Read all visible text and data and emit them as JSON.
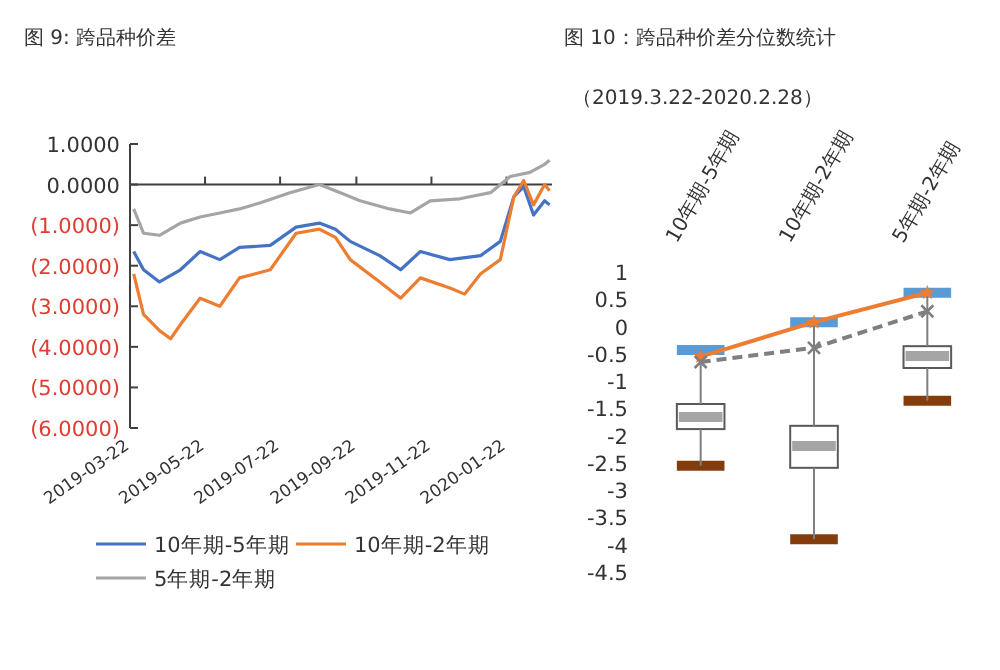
{
  "chart_data": [
    {
      "type": "line",
      "title": "图 9:  跨品种价差",
      "xlim": [
        "2019-03-22",
        "2020-02-28"
      ],
      "xticks": [
        "2019-03-22",
        "2019-05-22",
        "2019-07-22",
        "2019-09-22",
        "2019-11-22",
        "2020-01-22"
      ],
      "ylim": [
        -6,
        1
      ],
      "yticks": [
        {
          "value": 1,
          "label": "1.0000"
        },
        {
          "value": 0,
          "label": "0.0000"
        },
        {
          "value": -1,
          "label": "(1.0000)"
        },
        {
          "value": -2,
          "label": "(2.0000)"
        },
        {
          "value": -3,
          "label": "(3.0000)"
        },
        {
          "value": -4,
          "label": "(4.0000)"
        },
        {
          "value": -5,
          "label": "(5.0000)"
        },
        {
          "value": -6,
          "label": "(6.0000)"
        }
      ],
      "legend": "bottom",
      "series": [
        {
          "name": "10年期-5年期",
          "color": "#4472c4",
          "x": [
            "2019-03-25",
            "2019-04-02",
            "2019-04-15",
            "2019-05-02",
            "2019-05-18",
            "2019-06-03",
            "2019-06-19",
            "2019-07-14",
            "2019-08-04",
            "2019-08-23",
            "2019-09-05",
            "2019-09-17",
            "2019-10-11",
            "2019-10-28",
            "2019-11-13",
            "2019-12-07",
            "2020-01-01",
            "2020-01-17",
            "2020-01-28",
            "2020-02-05",
            "2020-02-13",
            "2020-02-22",
            "2020-02-26"
          ],
          "values": [
            -1.65,
            -2.1,
            -2.4,
            -2.1,
            -1.65,
            -1.85,
            -1.55,
            -1.5,
            -1.05,
            -0.95,
            -1.1,
            -1.4,
            -1.75,
            -2.1,
            -1.65,
            -1.85,
            -1.75,
            -1.4,
            -0.3,
            -0.05,
            -0.75,
            -0.4,
            -0.5
          ]
        },
        {
          "name": "10年期-2年期",
          "color": "#ed7d31",
          "x": [
            "2019-03-25",
            "2019-04-02",
            "2019-04-15",
            "2019-04-24",
            "2019-05-02",
            "2019-05-18",
            "2019-06-03",
            "2019-06-19",
            "2019-07-14",
            "2019-08-04",
            "2019-08-23",
            "2019-09-05",
            "2019-09-17",
            "2019-10-11",
            "2019-10-28",
            "2019-11-13",
            "2019-12-07",
            "2019-12-19",
            "2020-01-01",
            "2020-01-17",
            "2020-01-28",
            "2020-02-05",
            "2020-02-13",
            "2020-02-22",
            "2020-02-26"
          ],
          "values": [
            -2.2,
            -3.2,
            -3.6,
            -3.8,
            -3.45,
            -2.8,
            -3.0,
            -2.3,
            -2.1,
            -1.2,
            -1.1,
            -1.3,
            -1.85,
            -2.4,
            -2.8,
            -2.3,
            -2.55,
            -2.7,
            -2.2,
            -1.85,
            -0.3,
            0.1,
            -0.5,
            0.0,
            -0.15
          ]
        },
        {
          "name": "5年期-2年期",
          "color": "#a5a5a5",
          "x": [
            "2019-03-25",
            "2019-04-02",
            "2019-04-15",
            "2019-05-02",
            "2019-05-18",
            "2019-06-03",
            "2019-06-19",
            "2019-07-06",
            "2019-07-30",
            "2019-08-23",
            "2019-09-09",
            "2019-09-25",
            "2019-10-19",
            "2019-11-05",
            "2019-11-21",
            "2019-12-15",
            "2020-01-09",
            "2020-01-25",
            "2020-02-10",
            "2020-02-22",
            "2020-02-26"
          ],
          "values": [
            -0.6,
            -1.2,
            -1.25,
            -0.95,
            -0.8,
            -0.7,
            -0.6,
            -0.45,
            -0.2,
            0.0,
            -0.2,
            -0.4,
            -0.6,
            -0.7,
            -0.4,
            -0.35,
            -0.2,
            0.2,
            0.3,
            0.5,
            0.6
          ]
        }
      ]
    },
    {
      "type": "box",
      "title": "图 10：跨品种价差分位数统计",
      "subtitle": "（2019.3.22-2020.2.28）",
      "categories": [
        "10年期-5年期",
        "10年期-2年期",
        "5年期-2年期"
      ],
      "ylim": [
        -4.5,
        1
      ],
      "yticks": [
        1,
        0.5,
        0,
        -0.5,
        -1,
        -1.5,
        -2,
        -2.5,
        -3,
        -3.5,
        -4,
        -4.5
      ],
      "boxes": [
        {
          "low": -2.55,
          "q1": -1.88,
          "median": -1.66,
          "q3": -1.42,
          "high": -0.43
        },
        {
          "low": -3.9,
          "q1": -2.59,
          "median": -2.19,
          "q3": -1.82,
          "high": 0.08
        },
        {
          "low": -1.36,
          "q1": -0.76,
          "median": -0.54,
          "q3": -0.36,
          "high": 0.62
        }
      ],
      "series": [
        {
          "type": "line",
          "color": "#ed7d31",
          "values": [
            -0.55,
            0.08,
            0.62
          ],
          "marker": "star",
          "line_style": "solid"
        },
        {
          "type": "line",
          "color": "#7f7f7f",
          "values": [
            -0.65,
            -0.39,
            0.28
          ],
          "marker": "cross",
          "line_style": "dashed"
        }
      ]
    }
  ]
}
